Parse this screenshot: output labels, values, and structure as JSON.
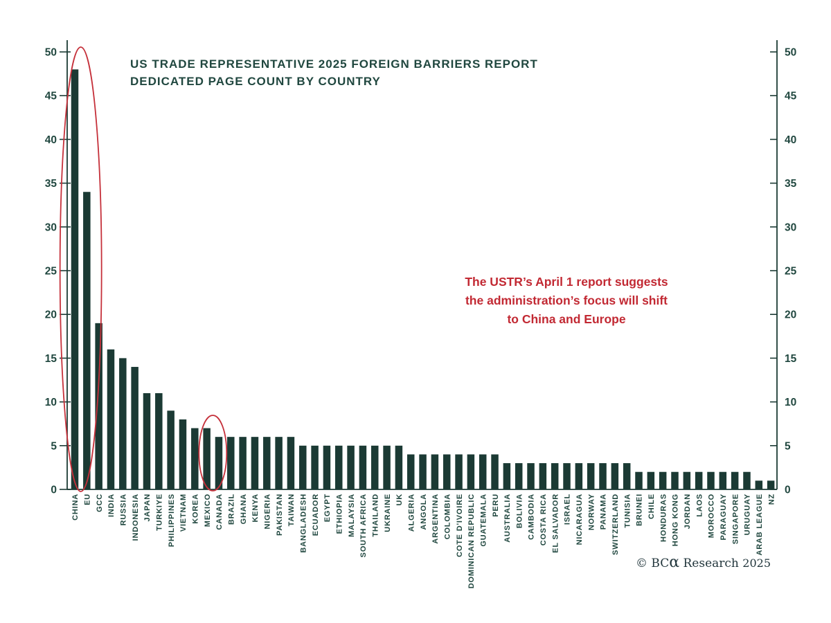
{
  "chart_data": {
    "type": "bar",
    "title": "US TRADE REPRESENTATIVE 2025 FOREIGN BARRIERS REPORT",
    "subtitle": "DEDICATED PAGE COUNT BY COUNTRY",
    "xlabel": "",
    "ylabel": "",
    "ylim": [
      0,
      50
    ],
    "ytick_step": 5,
    "grid": false,
    "legend_position": "none",
    "dual_y_axis": true,
    "bar_color": "#1b3a34",
    "text_color": "#20473f",
    "axis_color": "#1b3a34",
    "categories": [
      "CHINA",
      "EU",
      "GCC",
      "INDIA",
      "RUSSIA",
      "INDONESIA",
      "JAPAN",
      "TURKIYE",
      "PHILIPPINES",
      "VIETNAM",
      "KOREA",
      "MEXICO",
      "CANADA",
      "BRAZIL",
      "GHANA",
      "KENYA",
      "NIGERIA",
      "PAKISTAN",
      "TAIWAN",
      "BANGLADESH",
      "ECUADOR",
      "EGYPT",
      "ETHIOPIA",
      "MALAYSIA",
      "SOUTH AFRICA",
      "THAILAND",
      "UKRAINE",
      "UK",
      "ALGERIA",
      "ANGOLA",
      "ARGENTINA",
      "COLOMBIA",
      "COTE D'IVOIRE",
      "DOMINICAN REPUBLIC",
      "GUATEMALA",
      "PERU",
      "AUSTRALIA",
      "BOLIVIA",
      "CAMBODIA",
      "COSTA RICA",
      "EL SALVADOR",
      "ISRAEL",
      "NICARAGUA",
      "NORWAY",
      "PANAMA",
      "SWITZERLAND",
      "TUNISIA",
      "BRUNEI",
      "CHILE",
      "HONDURAS",
      "HONG KONG",
      "JORDAN",
      "LAOS",
      "MOROCCO",
      "PARAGUAY",
      "SINGAPORE",
      "URUGUAY",
      "ARAB LEAGUE",
      "NZ"
    ],
    "values": [
      48,
      34,
      19,
      16,
      15,
      14,
      11,
      11,
      9,
      8,
      7,
      7,
      6,
      6,
      6,
      6,
      6,
      6,
      6,
      5,
      5,
      5,
      5,
      5,
      5,
      5,
      5,
      5,
      4,
      4,
      4,
      4,
      4,
      4,
      4,
      4,
      3,
      3,
      3,
      3,
      3,
      3,
      3,
      3,
      3,
      3,
      3,
      2,
      2,
      2,
      2,
      2,
      2,
      2,
      2,
      2,
      2,
      1,
      1
    ],
    "annotation": {
      "lines": [
        "The USTR’s April 1 report suggests",
        "the administration’s focus will shift",
        "to China and Europe"
      ],
      "color": "#c22933"
    },
    "highlight_ellipses": [
      {
        "categories": [
          "CHINA",
          "EU"
        ],
        "color": "#c5303a"
      },
      {
        "categories": [
          "MEXICO",
          "CANADA"
        ],
        "color": "#c5303a"
      }
    ]
  },
  "credit": {
    "symbol": "©",
    "brand_prefix": "BC",
    "brand_alpha": "α",
    "name": "Research",
    "year": "2025"
  }
}
